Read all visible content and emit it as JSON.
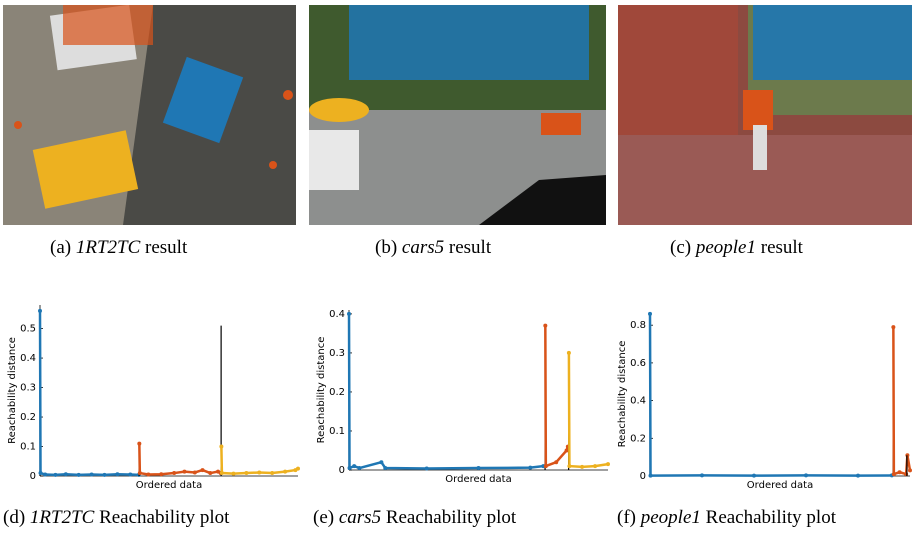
{
  "figures": [
    {
      "label": "(a)",
      "name": "1RT2TC",
      "text": "result"
    },
    {
      "label": "(b)",
      "name": "cars5",
      "text": "result"
    },
    {
      "label": "(c)",
      "name": "people1",
      "text": "result"
    }
  ],
  "chart_data": [
    {
      "type": "line",
      "ylabel": "Reachability distance",
      "xlabel": "Ordered data",
      "caption_label": "(d)",
      "caption_name": "1RT2TC",
      "caption_text": "Reachability plot",
      "xlim": [
        0,
        1000
      ],
      "ylim": [
        0,
        0.58
      ],
      "yticks": [
        0,
        0.1,
        0.2,
        0.3,
        0.4,
        0.5
      ],
      "series": [
        {
          "color": "#000000",
          "markers": false,
          "x": [
            0,
            0
          ],
          "values": [
            0,
            0.56
          ]
        },
        {
          "color": "#1f77b4",
          "markers": true,
          "x": [
            0,
            2,
            20,
            60,
            100,
            150,
            200,
            250,
            300,
            350,
            383
          ],
          "values": [
            0.56,
            0.01,
            0.005,
            0.004,
            0.006,
            0.004,
            0.005,
            0.004,
            0.006,
            0.005,
            0.004
          ]
        },
        {
          "color": "#000000",
          "markers": false,
          "x": [
            384,
            384
          ],
          "values": [
            0,
            0.11
          ]
        },
        {
          "color": "#d95319",
          "markers": true,
          "x": [
            385,
            387,
            420,
            470,
            520,
            560,
            600,
            630,
            660,
            690,
            700
          ],
          "values": [
            0.11,
            0.01,
            0.005,
            0.006,
            0.01,
            0.015,
            0.012,
            0.02,
            0.01,
            0.015,
            0.01
          ]
        },
        {
          "color": "#000000",
          "markers": false,
          "x": [
            702,
            702
          ],
          "values": [
            0,
            0.51
          ]
        },
        {
          "color": "#edb120",
          "markers": true,
          "x": [
            703,
            705,
            750,
            800,
            850,
            900,
            950,
            990,
            1000
          ],
          "values": [
            0.1,
            0.01,
            0.008,
            0.01,
            0.012,
            0.01,
            0.015,
            0.02,
            0.025
          ]
        }
      ]
    },
    {
      "type": "line",
      "ylabel": "Reachability distance",
      "xlabel": "Ordered data",
      "caption_label": "(e)",
      "caption_name": "cars5",
      "caption_text": "Reachability plot",
      "xlim": [
        0,
        1000
      ],
      "ylim": [
        0,
        0.41
      ],
      "yticks": [
        0,
        0.1,
        0.2,
        0.3,
        0.4
      ],
      "series": [
        {
          "color": "#000000",
          "markers": false,
          "x": [
            0,
            0
          ],
          "values": [
            0,
            0.4
          ]
        },
        {
          "color": "#1f77b4",
          "markers": true,
          "x": [
            0,
            2,
            20,
            40,
            125,
            140,
            300,
            500,
            700,
            750
          ],
          "values": [
            0.4,
            0.005,
            0.01,
            0.005,
            0.02,
            0.005,
            0.004,
            0.005,
            0.006,
            0.01
          ]
        },
        {
          "color": "#000000",
          "markers": false,
          "x": [
            757,
            757
          ],
          "values": [
            0,
            0.37
          ]
        },
        {
          "color": "#d95319",
          "markers": true,
          "x": [
            758,
            760,
            800,
            840,
            845
          ],
          "values": [
            0.37,
            0.01,
            0.02,
            0.05,
            0.06
          ]
        },
        {
          "color": "#000000",
          "markers": false,
          "x": [
            848,
            848
          ],
          "values": [
            0,
            0.3
          ]
        },
        {
          "color": "#edb120",
          "markers": true,
          "x": [
            849,
            851,
            900,
            950,
            1000
          ],
          "values": [
            0.3,
            0.01,
            0.008,
            0.01,
            0.015
          ]
        }
      ]
    },
    {
      "type": "line",
      "ylabel": "Reachability distance",
      "xlabel": "Ordered data",
      "caption_label": "(f)",
      "caption_name": "people1",
      "caption_text": "Reachability plot",
      "xlim": [
        0,
        1000
      ],
      "ylim": [
        0,
        0.87
      ],
      "yticks": [
        0,
        0.2,
        0.4,
        0.6,
        0.8
      ],
      "series": [
        {
          "color": "#000000",
          "markers": false,
          "x": [
            0,
            0
          ],
          "values": [
            0,
            0.86
          ]
        },
        {
          "color": "#1f77b4",
          "markers": true,
          "x": [
            0,
            2,
            200,
            400,
            600,
            800,
            930
          ],
          "values": [
            0.86,
            0.002,
            0.003,
            0.002,
            0.003,
            0.002,
            0.003
          ]
        },
        {
          "color": "#000000",
          "markers": false,
          "x": [
            935,
            935
          ],
          "values": [
            0,
            0.79
          ]
        },
        {
          "color": "#d95319",
          "markers": true,
          "x": [
            936,
            938,
            960,
            985,
            990,
            1000
          ],
          "values": [
            0.79,
            0.01,
            0.02,
            0.01,
            0.11,
            0.03
          ]
        },
        {
          "color": "#000000",
          "markers": false,
          "x": [
            988,
            988
          ],
          "values": [
            0,
            0.11
          ]
        }
      ]
    }
  ]
}
